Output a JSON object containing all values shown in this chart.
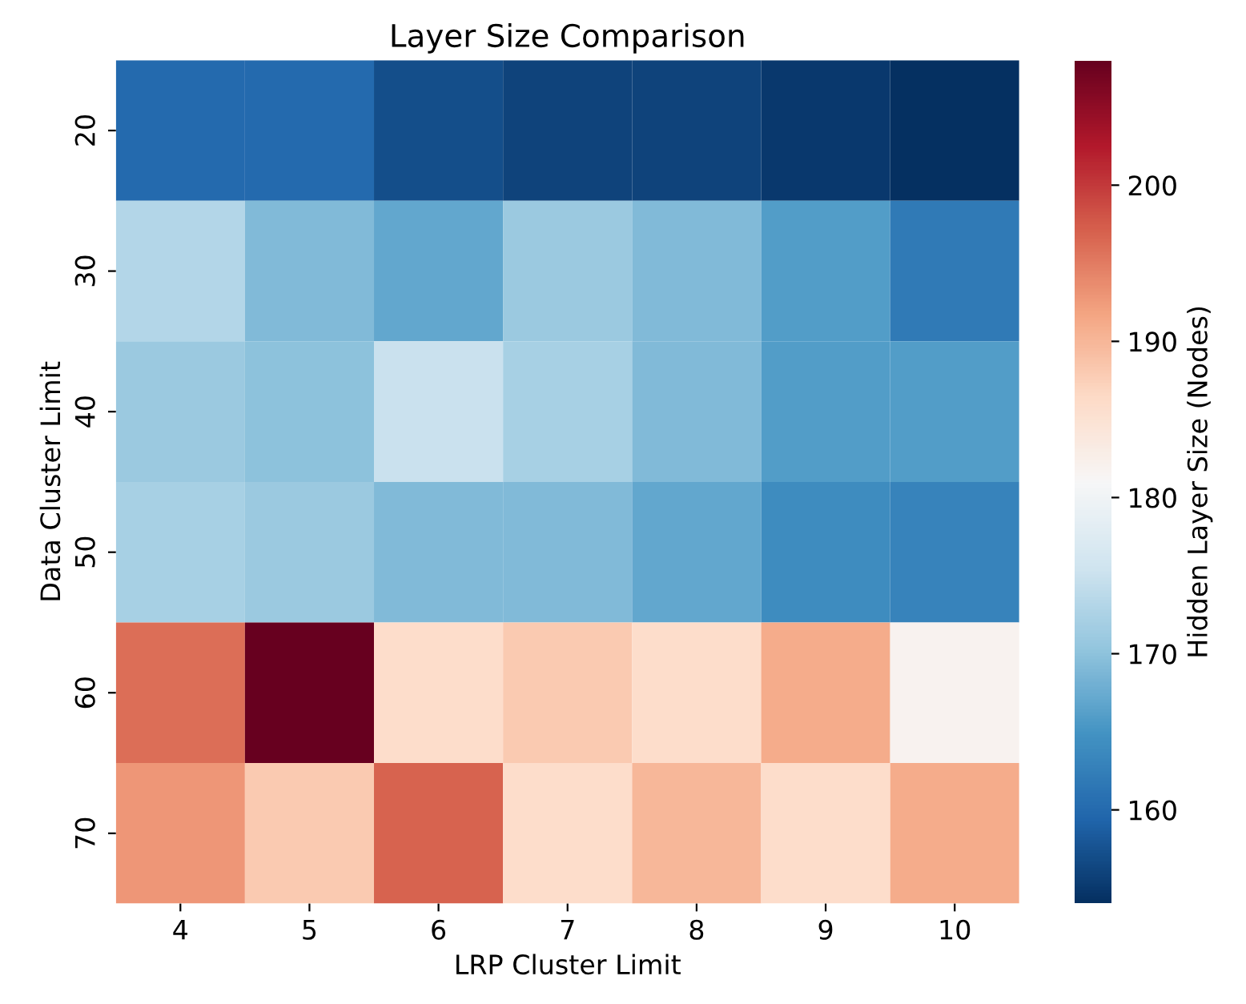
{
  "chart_data": {
    "type": "heatmap",
    "title": "Layer Size Comparison",
    "xlabel": "LRP Cluster Limit",
    "ylabel": "Data Cluster Limit",
    "clabel": "Hidden Layer Size (Nodes)",
    "categories": [
      "4",
      "5",
      "6",
      "7",
      "8",
      "9",
      "10"
    ],
    "y_categories": [
      "20",
      "30",
      "40",
      "50",
      "60",
      "70"
    ],
    "cells": [
      [
        160,
        160,
        157,
        156,
        156,
        155,
        154
      ],
      [
        173,
        169,
        167,
        171,
        169,
        166,
        162
      ],
      [
        171,
        170,
        175,
        172,
        169,
        166,
        166
      ],
      [
        172,
        171,
        169,
        169,
        167,
        164,
        163
      ],
      [
        196,
        208,
        186,
        188,
        186,
        191,
        182
      ],
      [
        193,
        188,
        197,
        186,
        190,
        186,
        191
      ]
    ],
    "clim": [
      154,
      208
    ],
    "cticks": [
      160,
      170,
      180,
      190,
      200
    ]
  }
}
